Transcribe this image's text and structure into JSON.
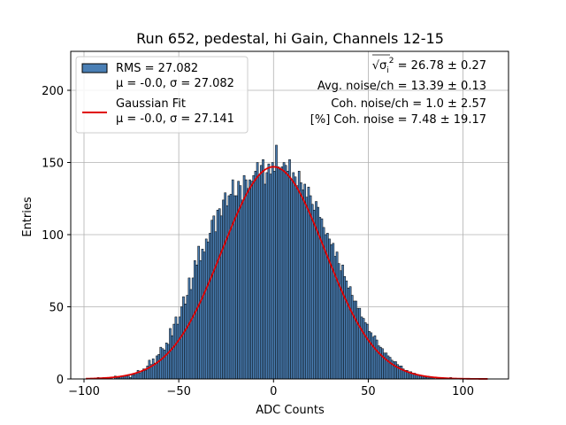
{
  "chart_data": {
    "type": "bar",
    "title": "Run 652, pedestal, hi Gain, Channels 12-15",
    "xlabel": "ADC Counts",
    "ylabel": "Entries",
    "xlim": [
      -107,
      124
    ],
    "ylim": [
      0,
      227
    ],
    "x_ticks": [
      -100,
      -50,
      0,
      50,
      100
    ],
    "x_tick_labels": [
      "−100",
      "−50",
      "0",
      "50",
      "100"
    ],
    "y_ticks": [
      0,
      50,
      100,
      150,
      200
    ],
    "y_tick_labels": [
      "0",
      "50",
      "100",
      "150",
      "200"
    ],
    "grid": true,
    "legend_position": "top-left",
    "series": [
      {
        "name": "RMS = 27.082",
        "name_line2": "μ = -0.0, σ = 27.082",
        "kind": "histogram",
        "color": "#4a7fb5",
        "edgecolor": "#000000",
        "bin_start": -99,
        "bin_width": 1,
        "counts": [
          0,
          0,
          0,
          0,
          0,
          0,
          1,
          0,
          0,
          1,
          0,
          1,
          1,
          1,
          0,
          2,
          1,
          1,
          2,
          2,
          2,
          2,
          3,
          1,
          3,
          3,
          4,
          6,
          4,
          5,
          7,
          6,
          9,
          13,
          10,
          14,
          11,
          16,
          17,
          22,
          21,
          20,
          25,
          24,
          35,
          30,
          38,
          43,
          38,
          43,
          50,
          57,
          52,
          58,
          70,
          62,
          70,
          82,
          79,
          92,
          82,
          90,
          88,
          97,
          95,
          101,
          110,
          113,
          102,
          117,
          118,
          113,
          124,
          129,
          120,
          127,
          128,
          138,
          127,
          127,
          137,
          134,
          124,
          141,
          138,
          132,
          138,
          137,
          141,
          144,
          150,
          141,
          148,
          152,
          135,
          143,
          149,
          142,
          150,
          144,
          162,
          147,
          145,
          147,
          150,
          148,
          144,
          152,
          138,
          143,
          140,
          134,
          144,
          136,
          131,
          135,
          126,
          133,
          127,
          121,
          117,
          123,
          119,
          112,
          111,
          105,
          100,
          101,
          97,
          93,
          94,
          85,
          88,
          80,
          75,
          79,
          71,
          68,
          63,
          64,
          58,
          54,
          54,
          49,
          49,
          43,
          42,
          39,
          38,
          33,
          32,
          29,
          30,
          27,
          23,
          22,
          21,
          18,
          18,
          16,
          15,
          13,
          12,
          12,
          10,
          9,
          9,
          7,
          6,
          6,
          5,
          5,
          4,
          4,
          3,
          3,
          2,
          2,
          2,
          1,
          2,
          1,
          1,
          1,
          0,
          1,
          0,
          1,
          0,
          0,
          0,
          0,
          1,
          0,
          0,
          0,
          0,
          0,
          0,
          0,
          0,
          0,
          0,
          0,
          0,
          0,
          0,
          0,
          0,
          0,
          0,
          0,
          0,
          0,
          0,
          0
        ]
      },
      {
        "name": "Gaussian Fit",
        "name_line2": "μ = -0.0, σ = 27.141",
        "kind": "line",
        "color": "#e00000",
        "mu": 0.0,
        "sigma": 27.141,
        "amplitude": 147,
        "x_range": [
          -99,
          113
        ]
      }
    ],
    "annotations": [
      {
        "prefix": "√",
        "symbol": "σ",
        "sub": "i",
        "sup": "2",
        "text": " = 26.78 ± 0.27"
      },
      {
        "text": "Avg. noise/ch = 13.39 ± 0.13"
      },
      {
        "text": "Coh. noise/ch = 1.0 ± 2.57"
      },
      {
        "text": "[%] Coh. noise = 7.48 ± 19.17"
      }
    ]
  }
}
